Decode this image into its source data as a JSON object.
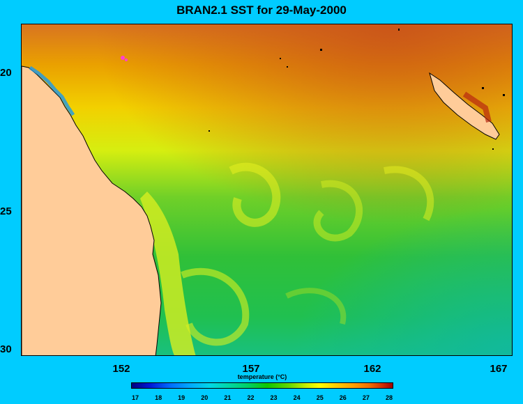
{
  "title": "BRAN2.1 SST for 29-May-2000",
  "colors": {
    "background": "#00ccff",
    "land": "#ffcc99",
    "sst_warm": "#d9541a",
    "sst_mid": "#e0f000",
    "sst_cool": "#28c030"
  },
  "y_axis": {
    "ticks": [
      "20",
      "25",
      "30"
    ]
  },
  "x_axis": {
    "ticks": [
      "152",
      "157",
      "162",
      "167"
    ]
  },
  "colorbar": {
    "label": "temperature (°C)",
    "min": 17,
    "max": 28,
    "ticks": [
      "17",
      "18",
      "19",
      "20",
      "21",
      "22",
      "23",
      "24",
      "25",
      "26",
      "27",
      "28"
    ]
  }
}
